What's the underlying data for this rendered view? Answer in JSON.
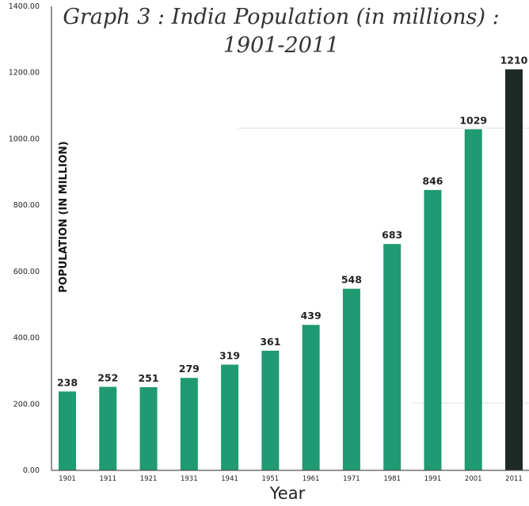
{
  "chart_data": {
    "type": "bar",
    "title_lines": [
      "Graph 3 : India Population (in millions) :",
      "1901-2011"
    ],
    "xlabel": "Year",
    "ylabel": "POPULATION (IN MILLION)",
    "categories": [
      "1901",
      "1911",
      "1921",
      "1931",
      "1941",
      "1951",
      "1961",
      "1971",
      "1981",
      "1991",
      "2001",
      "2011"
    ],
    "values": [
      238,
      252,
      251,
      279,
      319,
      361,
      439,
      548,
      683,
      846,
      1029,
      1210
    ],
    "value_labels": [
      "238",
      "252",
      "251",
      "279",
      "319",
      "361",
      "439",
      "548",
      "683",
      "846",
      "1029",
      "1210"
    ],
    "y_ticks": [
      "0.00",
      "200.00",
      "400.00",
      "600.00",
      "800.00",
      "1000.00",
      "1200.00",
      "1400.00"
    ],
    "ylim": [
      0,
      1400
    ],
    "grid": false,
    "colors": {
      "bar": "#1f9a73",
      "highlight_bar": "#1e2a26",
      "axis": "#555555",
      "guide_line": "#e2e2e2"
    },
    "highlight_category": "2011"
  }
}
